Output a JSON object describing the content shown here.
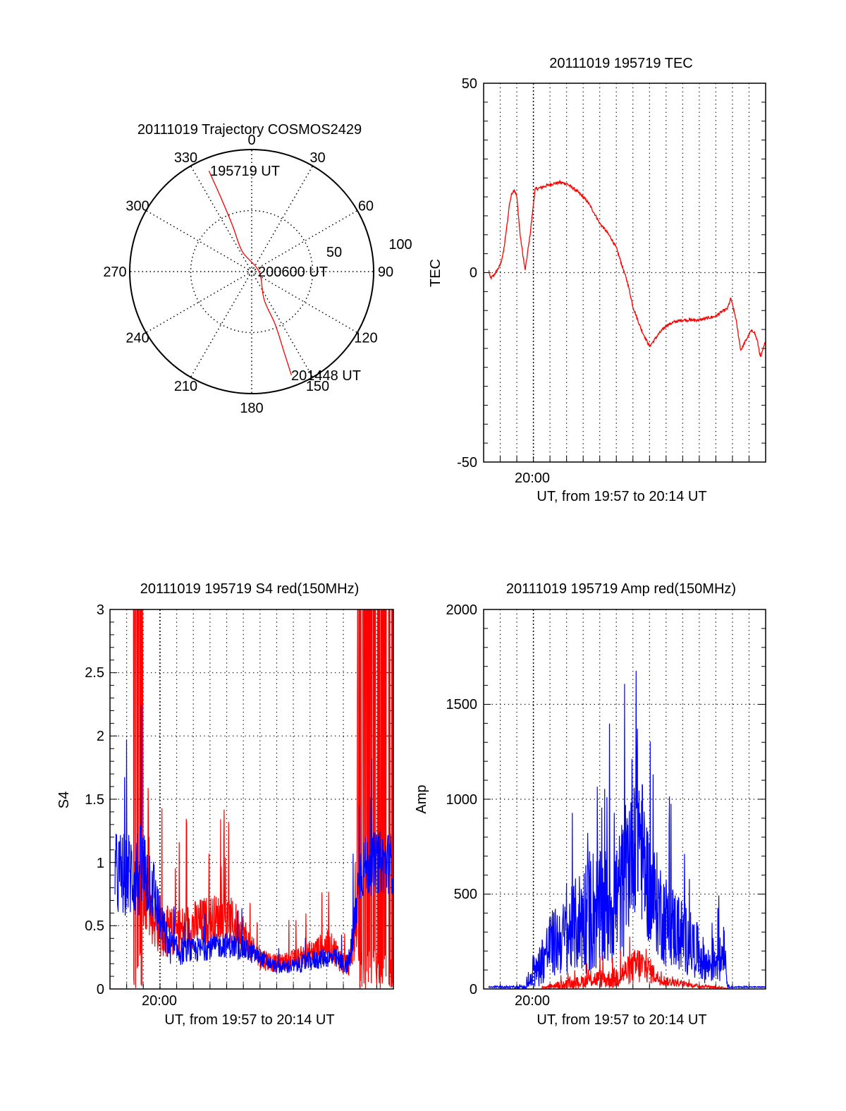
{
  "chart_data": [
    {
      "type": "polar",
      "title": "20111019 Trajectory COSMOS2429",
      "azimuth_labels": [
        "0",
        "30",
        "60",
        "90",
        "120",
        "150",
        "180",
        "210",
        "240",
        "270",
        "300",
        "330"
      ],
      "radial_labels": [
        "50",
        "100"
      ],
      "radial_range": [
        0,
        100
      ],
      "series_color": "#ff0000",
      "trajectory": [
        {
          "az": 337,
          "r": 89.6
        },
        {
          "az": 337.4,
          "r": 65
        },
        {
          "az": 337.4,
          "r": 40.7
        },
        {
          "az": 335,
          "r": 18
        },
        {
          "az": 90,
          "r": 6
        },
        {
          "az": 156,
          "r": 25
        },
        {
          "az": 156,
          "r": 47.4
        },
        {
          "az": 158,
          "r": 70
        },
        {
          "az": 159,
          "r": 90.9
        }
      ],
      "annotations": [
        "195719 UT",
        "200600 UT",
        "201448 UT"
      ]
    },
    {
      "type": "line",
      "title": "20111019 195719 TEC",
      "ylabel": "TEC",
      "xlabel": "UT, from 19:57 to 20:14 UT",
      "xtick_labels": [
        "20:00"
      ],
      "ytick_labels": [
        "50",
        "0",
        "-50"
      ],
      "ylim": [
        -50,
        50
      ],
      "xlim_minutes_after_1957": [
        0,
        17
      ],
      "grid": "vertical every minute, horizontal at 0",
      "series": [
        {
          "name": "TEC",
          "color": "#ff0000",
          "x": [
            0.32,
            0.4,
            0.55,
            0.8,
            1.0,
            1.2,
            1.35,
            1.45,
            1.55,
            1.7,
            1.85,
            2.0,
            2.2,
            2.5,
            2.8,
            3.1,
            3.5,
            3.8,
            4.2,
            4.6,
            5.0,
            5.5,
            6.0,
            6.3,
            6.7,
            7.0,
            7.3,
            7.7,
            8.0,
            8.3,
            8.7,
            9.0,
            9.5,
            10.0,
            10.5,
            11.0,
            11.5,
            12.0,
            12.5,
            13.0,
            13.5,
            14.0,
            14.3,
            14.5,
            14.7,
            14.9,
            15.2,
            15.5,
            15.8,
            16.1,
            16.3,
            16.5,
            16.7,
            17.0
          ],
          "y": [
            0.5,
            -1.5,
            -1,
            0.5,
            2,
            5.5,
            10.5,
            14,
            18,
            21,
            22,
            20,
            10,
            0.5,
            10,
            22,
            22.5,
            23,
            23.5,
            23.8,
            23.5,
            22,
            20,
            18.5,
            15.5,
            13,
            11.5,
            9,
            6.5,
            2.5,
            -3,
            -9,
            -15,
            -19.5,
            -16.5,
            -14,
            -13,
            -12.5,
            -12.5,
            -12.5,
            -12,
            -11.5,
            -10.5,
            -10,
            -9.5,
            -6.8,
            -12,
            -20.5,
            -18,
            -15.5,
            -15.5,
            -18,
            -22.5,
            -18
          ]
        }
      ]
    },
    {
      "type": "line",
      "title": "20111019 195719 S4 red(150MHz)",
      "ylabel": "S4",
      "xlabel": "UT, from 19:57 to 20:14 UT",
      "xtick_labels": [
        "20:00"
      ],
      "ytick_labels": [
        "0",
        "0.5",
        "1",
        "1.5",
        "2",
        "2.5",
        "3"
      ],
      "ylim": [
        0,
        3
      ],
      "xlim_minutes_after_1957": [
        0,
        17
      ],
      "grid": "dotted, every minute and every 0.5",
      "series": [
        {
          "name": "blue",
          "color": "#0000ff",
          "range": [
            0.3,
            16.95
          ],
          "envelope_x": [
            0.3,
            1.0,
            2.0,
            2.5,
            3.0,
            3.5,
            4.0,
            5.0,
            6.0,
            7.0,
            8.0,
            9.0,
            10.0,
            11.0,
            12.0,
            13.0,
            13.5,
            14.0,
            14.3,
            14.6,
            15.0,
            16.0,
            16.95
          ],
          "envelope_mean": [
            0.9,
            0.9,
            0.92,
            0.85,
            0.55,
            0.35,
            0.3,
            0.3,
            0.33,
            0.35,
            0.32,
            0.25,
            0.17,
            0.18,
            0.22,
            0.25,
            0.24,
            0.2,
            0.2,
            0.4,
            0.95,
            1.0,
            1.0
          ],
          "envelope_spread": [
            0.35,
            0.35,
            0.4,
            0.3,
            0.2,
            0.15,
            0.12,
            0.1,
            0.1,
            0.1,
            0.1,
            0.07,
            0.05,
            0.06,
            0.08,
            0.08,
            0.08,
            0.08,
            0.08,
            0.2,
            0.25,
            0.25,
            0.25
          ]
        },
        {
          "name": "red",
          "color": "#ff0000",
          "range": [
            1.0,
            17.0
          ],
          "saturated_intervals": [
            [
              0.95,
              1.05
            ],
            [
              1.35,
              1.95
            ],
            [
              14.85,
              17.0
            ]
          ],
          "envelope_x": [
            2.0,
            2.5,
            3.0,
            3.5,
            4.0,
            5.0,
            6.0,
            7.0,
            7.5,
            8.0,
            8.5,
            9.0,
            10.0,
            11.0,
            12.0,
            13.0,
            13.5,
            14.0,
            14.4,
            14.8
          ],
          "envelope_mean": [
            0.8,
            0.6,
            0.5,
            0.45,
            0.45,
            0.5,
            0.55,
            0.55,
            0.5,
            0.45,
            0.3,
            0.25,
            0.2,
            0.23,
            0.28,
            0.35,
            0.3,
            0.2,
            0.2,
            0.5
          ],
          "envelope_spread": [
            0.3,
            0.25,
            0.25,
            0.2,
            0.2,
            0.2,
            0.2,
            0.2,
            0.2,
            0.15,
            0.12,
            0.1,
            0.07,
            0.08,
            0.1,
            0.12,
            0.12,
            0.1,
            0.1,
            0.2
          ]
        }
      ]
    },
    {
      "type": "line",
      "title": "20111019 195719 Amp red(150MHz)",
      "ylabel": "Amp",
      "xlabel": "UT, from 19:57 to 20:14 UT",
      "xtick_labels": [
        "20:00"
      ],
      "ytick_labels": [
        "0",
        "500",
        "1000",
        "1500",
        "2000"
      ],
      "ylim": [
        0,
        2000
      ],
      "xlim_minutes_after_1957": [
        0,
        17
      ],
      "grid": "dotted, every minute and every 500",
      "series": [
        {
          "name": "blue",
          "color": "#0000ff",
          "range": [
            0.3,
            17.0
          ],
          "envelope_x": [
            0.3,
            2.5,
            3.0,
            3.5,
            4.0,
            5.0,
            6.0,
            6.5,
            7.0,
            8.0,
            8.5,
            9.0,
            9.3,
            9.6,
            10.0,
            11.0,
            12.0,
            13.0,
            13.5,
            14.0,
            14.3,
            14.5,
            14.7,
            15.0,
            17.0
          ],
          "envelope_mean": [
            10,
            10,
            60,
            150,
            230,
            280,
            380,
            420,
            400,
            470,
            550,
            850,
            900,
            700,
            520,
            360,
            280,
            190,
            120,
            170,
            150,
            260,
            15,
            10,
            10
          ],
          "envelope_spread": [
            3,
            8,
            60,
            130,
            180,
            200,
            300,
            350,
            320,
            350,
            380,
            450,
            500,
            380,
            300,
            250,
            200,
            140,
            100,
            140,
            120,
            150,
            10,
            3,
            3
          ]
        },
        {
          "name": "red",
          "color": "#ff0000",
          "range": [
            3.5,
            14.8
          ],
          "envelope_x": [
            3.5,
            4.5,
            5.5,
            6.5,
            7.0,
            7.5,
            8.0,
            8.5,
            9.0,
            9.3,
            9.6,
            10.0,
            10.5,
            11.0,
            12.0,
            13.0,
            14.0,
            14.8
          ],
          "envelope_mean": [
            5,
            20,
            30,
            50,
            55,
            50,
            60,
            90,
            110,
            125,
            120,
            100,
            60,
            40,
            25,
            15,
            10,
            2
          ],
          "envelope_spread": [
            5,
            20,
            30,
            40,
            50,
            50,
            60,
            70,
            90,
            110,
            90,
            70,
            40,
            25,
            15,
            10,
            8,
            2
          ]
        }
      ]
    }
  ]
}
